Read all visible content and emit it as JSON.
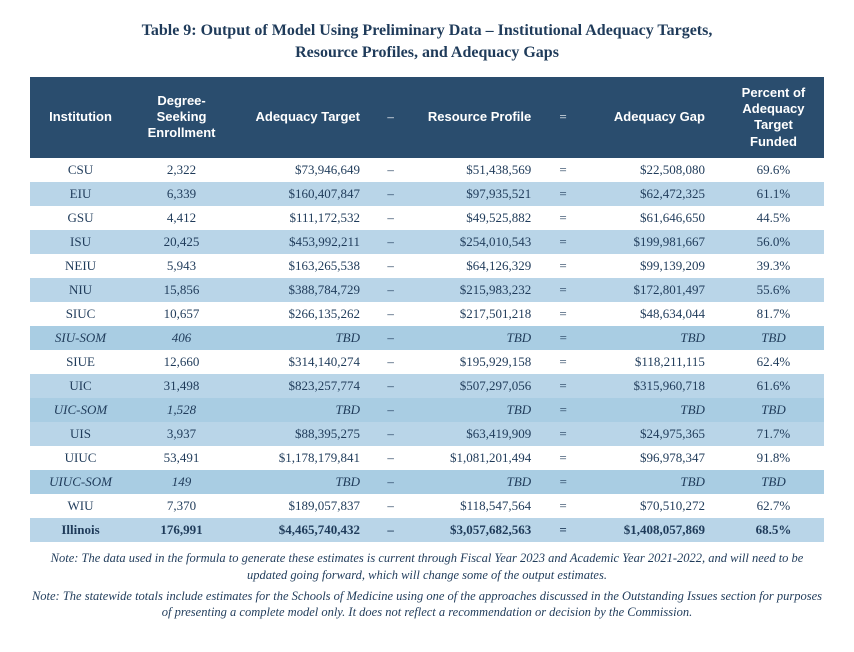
{
  "title_line1": "Table 9:  Output of Model Using Preliminary Data – Institutional Adequacy Targets,",
  "title_line2": "Resource Profiles, and Adequacy Gaps",
  "headers": {
    "institution": "Institution",
    "enrollment": "Degree-Seeking Enrollment",
    "target": "Adequacy Target",
    "minus": "–",
    "profile": "Resource Profile",
    "equals": "=",
    "gap": "Adequacy Gap",
    "pct": "Percent of Adequacy Target Funded"
  },
  "rows": [
    {
      "inst": "CSU",
      "enroll": "2,322",
      "target": "$73,946,649",
      "profile": "$51,438,569",
      "gap": "$22,508,080",
      "pct": "69.6%",
      "band": "white",
      "style": ""
    },
    {
      "inst": "EIU",
      "enroll": "6,339",
      "target": "$160,407,847",
      "profile": "$97,935,521",
      "gap": "$62,472,325",
      "pct": "61.1%",
      "band": "light",
      "style": ""
    },
    {
      "inst": "GSU",
      "enroll": "4,412",
      "target": "$111,172,532",
      "profile": "$49,525,882",
      "gap": "$61,646,650",
      "pct": "44.5%",
      "band": "white",
      "style": ""
    },
    {
      "inst": "ISU",
      "enroll": "20,425",
      "target": "$453,992,211",
      "profile": "$254,010,543",
      "gap": "$199,981,667",
      "pct": "56.0%",
      "band": "light",
      "style": ""
    },
    {
      "inst": "NEIU",
      "enroll": "5,943",
      "target": "$163,265,538",
      "profile": "$64,126,329",
      "gap": "$99,139,209",
      "pct": "39.3%",
      "band": "white",
      "style": ""
    },
    {
      "inst": "NIU",
      "enroll": "15,856",
      "target": "$388,784,729",
      "profile": "$215,983,232",
      "gap": "$172,801,497",
      "pct": "55.6%",
      "band": "light",
      "style": ""
    },
    {
      "inst": "SIUC",
      "enroll": "10,657",
      "target": "$266,135,262",
      "profile": "$217,501,218",
      "gap": "$48,634,044",
      "pct": "81.7%",
      "band": "white",
      "style": ""
    },
    {
      "inst": "SIU-SOM",
      "enroll": "406",
      "target": "TBD",
      "profile": "TBD",
      "gap": "TBD",
      "pct": "TBD",
      "band": "med",
      "style": "italic"
    },
    {
      "inst": "SIUE",
      "enroll": "12,660",
      "target": "$314,140,274",
      "profile": "$195,929,158",
      "gap": "$118,211,115",
      "pct": "62.4%",
      "band": "white",
      "style": ""
    },
    {
      "inst": "UIC",
      "enroll": "31,498",
      "target": "$823,257,774",
      "profile": "$507,297,056",
      "gap": "$315,960,718",
      "pct": "61.6%",
      "band": "light",
      "style": ""
    },
    {
      "inst": "UIC-SOM",
      "enroll": "1,528",
      "target": "TBD",
      "profile": "TBD",
      "gap": "TBD",
      "pct": "TBD",
      "band": "med",
      "style": "italic"
    },
    {
      "inst": "UIS",
      "enroll": "3,937",
      "target": "$88,395,275",
      "profile": "$63,419,909",
      "gap": "$24,975,365",
      "pct": "71.7%",
      "band": "light",
      "style": ""
    },
    {
      "inst": "UIUC",
      "enroll": "53,491",
      "target": "$1,178,179,841",
      "profile": "$1,081,201,494",
      "gap": "$96,978,347",
      "pct": "91.8%",
      "band": "white",
      "style": ""
    },
    {
      "inst": "UIUC-SOM",
      "enroll": "149",
      "target": "TBD",
      "profile": "TBD",
      "gap": "TBD",
      "pct": "TBD",
      "band": "med",
      "style": "italic"
    },
    {
      "inst": "WIU",
      "enroll": "7,370",
      "target": "$189,057,837",
      "profile": "$118,547,564",
      "gap": "$70,510,272",
      "pct": "62.7%",
      "band": "white",
      "style": ""
    },
    {
      "inst": "Illinois",
      "enroll": "176,991",
      "target": "$4,465,740,432",
      "profile": "$3,057,682,563",
      "gap": "$1,408,057,869",
      "pct": "68.5%",
      "band": "light",
      "style": "bold"
    }
  ],
  "op_minus": "–",
  "op_equals": "=",
  "note1": "Note:  The data used in the formula to generate these estimates is current through Fiscal Year 2023 and Academic Year 2021-2022, and will need to be updated going forward, which will change some of the output estimates.",
  "note2": "Note:  The statewide totals include estimates for the Schools of Medicine using one of the approaches discussed in the Outstanding Issues section for purposes of presenting a complete model only. It does not reflect a recommendation or decision by the Commission."
}
